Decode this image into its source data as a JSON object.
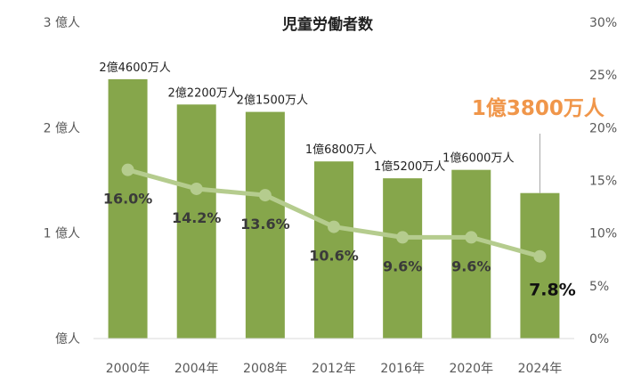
{
  "chart_data": {
    "type": "bar",
    "title": "児童労働者数",
    "categories": [
      "2000年",
      "2004年",
      "2008年",
      "2012年",
      "2016年",
      "2020年",
      "2024年"
    ],
    "series": [
      {
        "axis": "left",
        "type": "bar",
        "values": [
          246000000,
          222000000,
          215000000,
          168000000,
          152000000,
          160000000,
          138000000
        ],
        "data_labels": [
          "2億4600万人",
          "2億2200万人",
          "2億1500万人",
          "1億6800万人",
          "1億5200万人",
          "1億6000万人",
          "1億3800万人"
        ],
        "color": "#86a64b"
      },
      {
        "axis": "right",
        "type": "line",
        "values": [
          16.0,
          14.2,
          13.6,
          10.6,
          9.6,
          9.6,
          7.8
        ],
        "data_labels": [
          "16.0%",
          "14.2%",
          "13.6%",
          "10.6%",
          "9.6%",
          "9.6%",
          "7.8%"
        ],
        "color": "#b5cc8e"
      }
    ],
    "y_left": {
      "ylim": [
        0,
        300000000
      ],
      "ticks": [
        0,
        100000000,
        200000000,
        300000000
      ],
      "tick_labels": [
        "億人",
        "1 億人",
        "2 億人",
        "3 億人"
      ]
    },
    "y_right": {
      "ylim": [
        0,
        30
      ],
      "ticks": [
        0,
        5,
        10,
        15,
        20,
        25,
        30
      ],
      "tick_labels": [
        "0%",
        "5%",
        "10%",
        "15%",
        "20%",
        "25%",
        "30%"
      ]
    },
    "highlight": {
      "index": 6,
      "color": "#f0964a",
      "line_label_color": "#111111"
    },
    "grid": false,
    "legend": "none"
  }
}
